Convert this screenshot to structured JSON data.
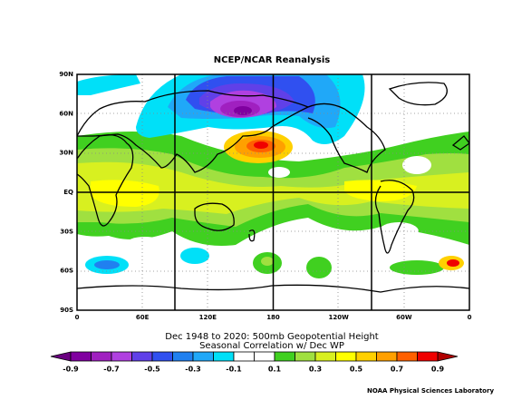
{
  "title": "NCEP/NCAR Reanalysis",
  "map": {
    "lat_labels": [
      "90N",
      "60N",
      "30N",
      "EQ",
      "30S",
      "60S",
      "90S"
    ],
    "lon_labels": [
      "0",
      "60E",
      "120E",
      "180",
      "120W",
      "60W",
      "0"
    ]
  },
  "caption": [
    "Dec 1948 to 2020: 500mb Geopotential Height",
    "Seasonal Correlation w/ Dec WP"
  ],
  "colorbar": {
    "labels": [
      -0.9,
      -0.7,
      -0.5,
      -0.3,
      -0.1,
      0.1,
      0.3,
      0.5,
      0.7,
      0.9
    ],
    "under_color": "#6a0080",
    "over_color": "#b00000",
    "colors": [
      "#8000a0",
      "#a020c0",
      "#b040e0",
      "#6040e8",
      "#3050f0",
      "#2080f0",
      "#20a8f8",
      "#00e0f8",
      "#ffffff",
      "#ffffff",
      "#40d020",
      "#a0e040",
      "#d8f020",
      "#ffff00",
      "#ffd000",
      "#ffa000",
      "#ff6000",
      "#f00000"
    ]
  },
  "footer": "NOAA Physical Sciences Laboratory"
}
